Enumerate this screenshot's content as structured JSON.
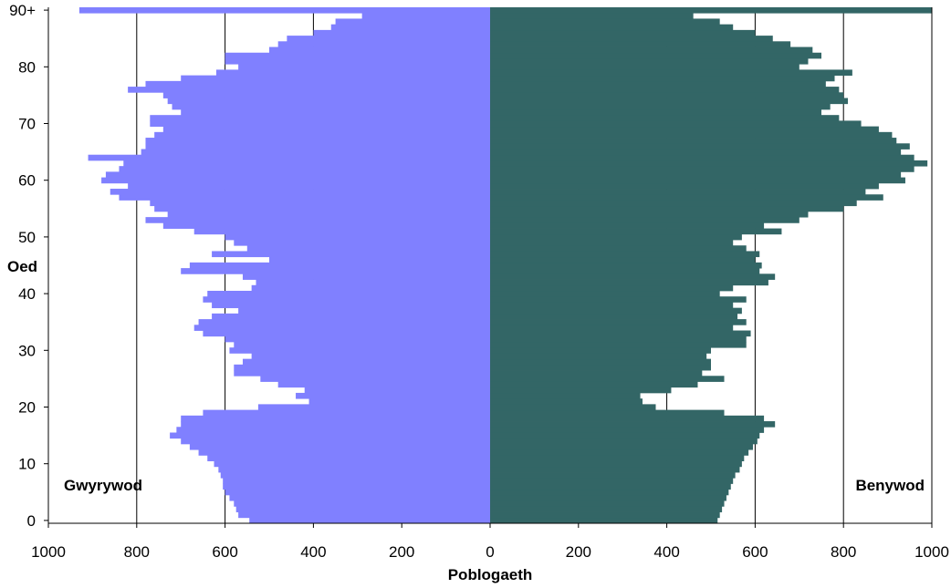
{
  "chart_data": {
    "type": "bar",
    "orientation": "horizontal",
    "layout": "population-pyramid",
    "xlabel": "Poblogaeth",
    "ylabel": "Oed",
    "xlim": [
      -1000,
      1000
    ],
    "ylim": [
      0,
      90
    ],
    "x_tick_labels": [
      "1000",
      "800",
      "600",
      "400",
      "200",
      "0",
      "200",
      "400",
      "600",
      "800",
      "1000"
    ],
    "y_tick_labels": [
      "0",
      "10",
      "20",
      "30",
      "40",
      "50",
      "60",
      "70",
      "80",
      "90+"
    ],
    "grid": "vertical",
    "categories": [
      "0",
      "1",
      "2",
      "3",
      "4",
      "5",
      "6",
      "7",
      "8",
      "9",
      "10",
      "11",
      "12",
      "13",
      "14",
      "15",
      "16",
      "17",
      "18",
      "19",
      "20",
      "21",
      "22",
      "23",
      "24",
      "25",
      "26",
      "27",
      "28",
      "29",
      "30",
      "31",
      "32",
      "33",
      "34",
      "35",
      "36",
      "37",
      "38",
      "39",
      "40",
      "41",
      "42",
      "43",
      "44",
      "45",
      "46",
      "47",
      "48",
      "49",
      "50",
      "51",
      "52",
      "53",
      "54",
      "55",
      "56",
      "57",
      "58",
      "59",
      "60",
      "61",
      "62",
      "63",
      "64",
      "65",
      "66",
      "67",
      "68",
      "69",
      "70",
      "71",
      "72",
      "73",
      "74",
      "75",
      "76",
      "77",
      "78",
      "79",
      "80",
      "81",
      "82",
      "83",
      "84",
      "85",
      "86",
      "87",
      "88",
      "89",
      "90+"
    ],
    "series": [
      {
        "name": "Gwyrywod",
        "side": "left",
        "color": "#8080ff",
        "values": [
          545,
          570,
          575,
          580,
          590,
          600,
          605,
          605,
          610,
          615,
          625,
          640,
          660,
          680,
          700,
          725,
          710,
          700,
          700,
          650,
          525,
          410,
          440,
          420,
          480,
          520,
          580,
          580,
          560,
          540,
          590,
          580,
          600,
          650,
          670,
          660,
          630,
          570,
          630,
          650,
          640,
          540,
          530,
          560,
          700,
          680,
          500,
          630,
          550,
          580,
          600,
          670,
          740,
          780,
          730,
          760,
          770,
          840,
          860,
          820,
          880,
          870,
          840,
          830,
          910,
          790,
          780,
          780,
          760,
          740,
          770,
          770,
          700,
          720,
          730,
          740,
          820,
          780,
          700,
          620,
          570,
          600,
          600,
          500,
          480,
          460,
          400,
          360,
          350,
          290,
          930
        ]
      },
      {
        "name": "Benywod",
        "side": "right",
        "color": "#336666",
        "values": [
          515,
          520,
          525,
          530,
          535,
          540,
          545,
          550,
          555,
          565,
          570,
          575,
          585,
          595,
          605,
          610,
          620,
          645,
          620,
          530,
          375,
          345,
          340,
          410,
          470,
          530,
          480,
          500,
          500,
          490,
          500,
          580,
          580,
          590,
          550,
          580,
          560,
          570,
          550,
          580,
          520,
          550,
          630,
          645,
          610,
          615,
          600,
          610,
          580,
          550,
          570,
          660,
          620,
          700,
          720,
          800,
          830,
          890,
          850,
          880,
          940,
          930,
          960,
          990,
          960,
          930,
          950,
          920,
          910,
          880,
          840,
          790,
          750,
          770,
          810,
          800,
          790,
          760,
          780,
          820,
          700,
          720,
          750,
          730,
          680,
          640,
          600,
          550,
          520,
          460,
          1000
        ]
      }
    ]
  }
}
